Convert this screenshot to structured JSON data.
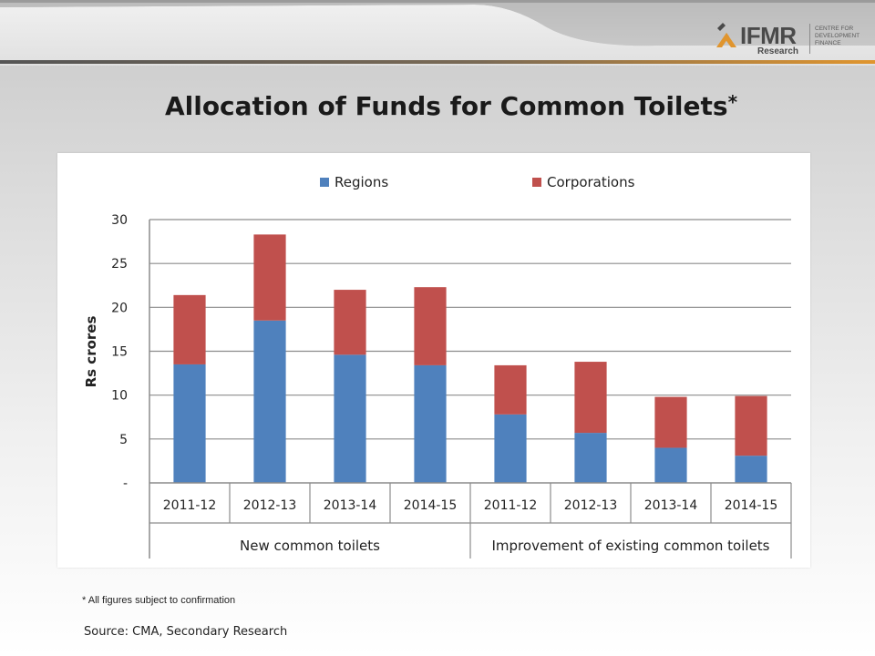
{
  "header": {
    "logo": {
      "name": "IFMR",
      "subname": "Research",
      "tagline": [
        "CENTRE FOR",
        "DEVELOPMENT",
        "FINANCE"
      ]
    }
  },
  "slide": {
    "title": "Allocation of Funds for Common Toilets",
    "title_mark": "*",
    "footnote": "* All figures subject to confirmation",
    "source": "Source: CMA, Secondary Research"
  },
  "colors": {
    "regions": "#4f81bd",
    "corporations": "#c0504d",
    "accent_bar": "#d48a2a"
  },
  "chart_data": {
    "type": "bar",
    "stacked": true,
    "categories": [
      "2011-12",
      "2012-13",
      "2013-14",
      "2014-15",
      "2011-12",
      "2012-13",
      "2013-14",
      "2014-15"
    ],
    "groups": [
      {
        "label": "New common toilets",
        "span": 4
      },
      {
        "label": "Improvement of existing common toilets",
        "span": 4
      }
    ],
    "series": [
      {
        "name": "Regions",
        "values": [
          13.5,
          18.5,
          14.6,
          13.4,
          7.8,
          5.7,
          4.0,
          3.1
        ]
      },
      {
        "name": "Corporations",
        "values": [
          7.9,
          9.8,
          7.4,
          8.9,
          5.6,
          8.1,
          5.8,
          6.8
        ]
      }
    ],
    "ylabel": "Rs crores",
    "xlabel": "",
    "ylim": [
      0,
      30
    ],
    "yticks": [
      0,
      5,
      10,
      15,
      20,
      25,
      30
    ],
    "ytick_labels": [
      "-",
      "5",
      "10",
      "15",
      "20",
      "25",
      "30"
    ],
    "grid": true,
    "legend": "top"
  }
}
